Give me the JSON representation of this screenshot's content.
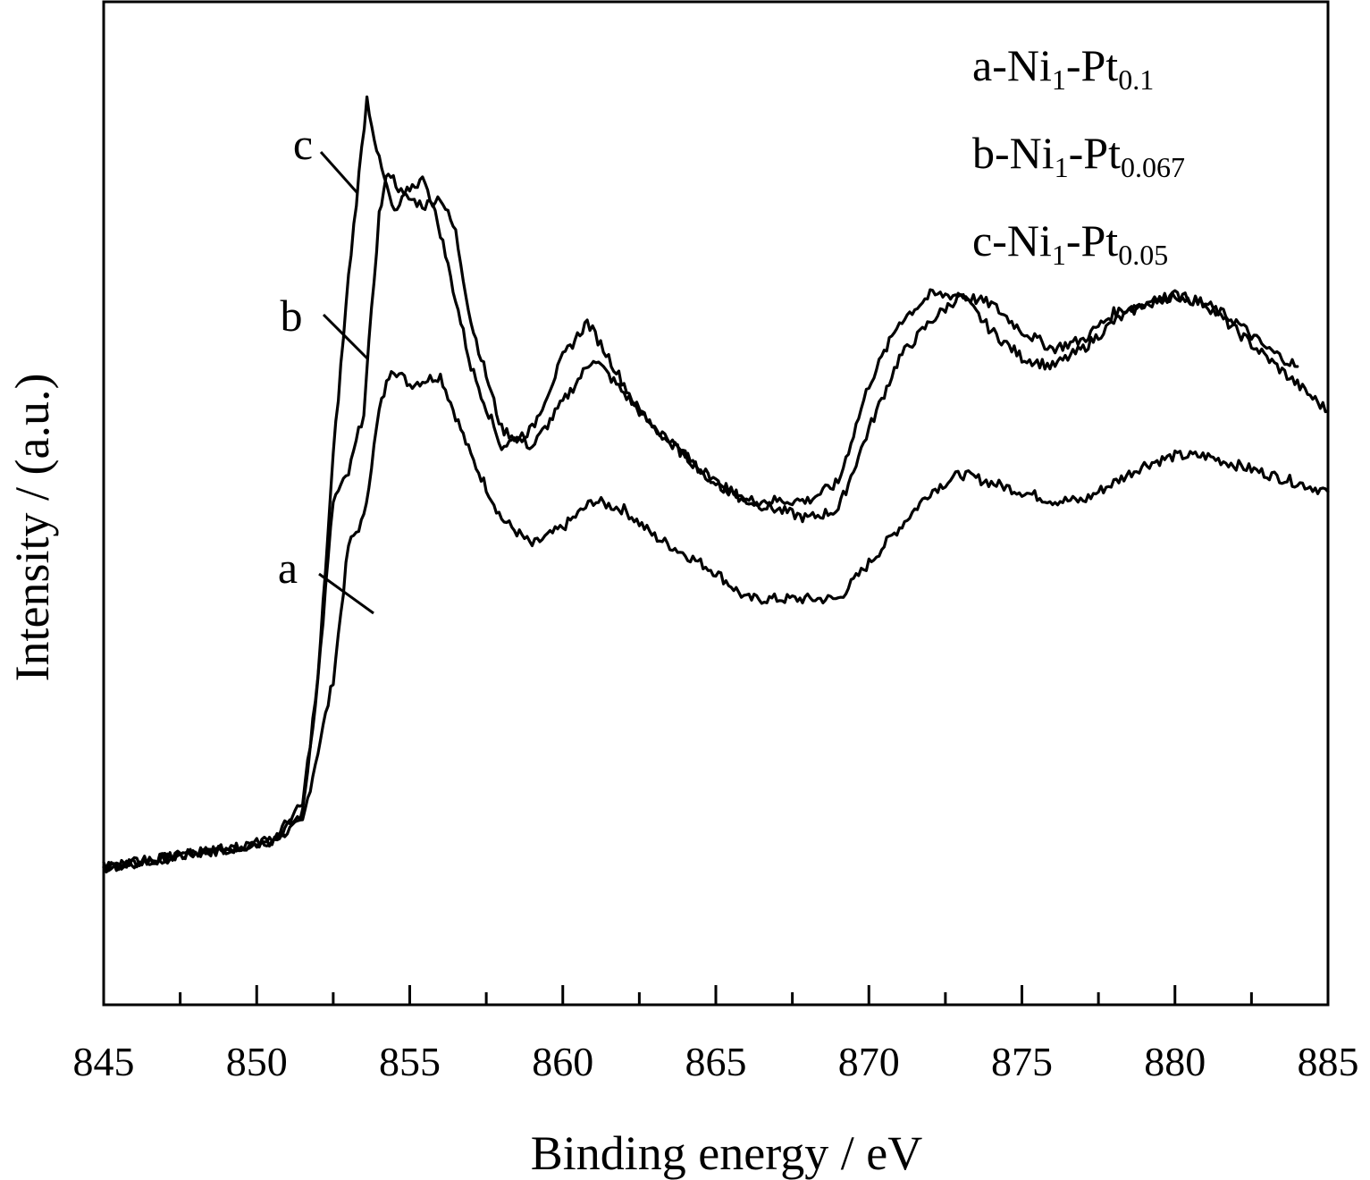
{
  "chart_data": {
    "type": "line",
    "title": "",
    "xlabel": "Binding energy / eV",
    "ylabel": "Intensity / (a.u.)",
    "xlim": [
      845,
      885
    ],
    "ylim": [
      0,
      1
    ],
    "x_ticks": [
      "845",
      "850",
      "855",
      "860",
      "865",
      "870",
      "875",
      "880",
      "885"
    ],
    "grid": false,
    "legend_position": "top-right",
    "legend": [
      {
        "prefix": "a-Ni",
        "sub1": "1",
        "mid": "-Pt",
        "sub2": "0.1"
      },
      {
        "prefix": "b-Ni",
        "sub1": "1",
        "mid": "-Pt",
        "sub2": "0.067"
      },
      {
        "prefix": "c-Ni",
        "sub1": "1",
        "mid": "-Pt",
        "sub2": "0.05"
      }
    ],
    "series": [
      {
        "name": "a",
        "points": [
          [
            845,
            0.09
          ],
          [
            847,
            0.1
          ],
          [
            849,
            0.11
          ],
          [
            850.5,
            0.12
          ],
          [
            851.5,
            0.14
          ],
          [
            852.5,
            0.3
          ],
          [
            853,
            0.45
          ],
          [
            853.5,
            0.48
          ],
          [
            854,
            0.6
          ],
          [
            854.4,
            0.65
          ],
          [
            855,
            0.63
          ],
          [
            856,
            0.64
          ],
          [
            857,
            0.55
          ],
          [
            858,
            0.48
          ],
          [
            859,
            0.45
          ],
          [
            860,
            0.47
          ],
          [
            861,
            0.5
          ],
          [
            862,
            0.49
          ],
          [
            863,
            0.46
          ],
          [
            864,
            0.44
          ],
          [
            865,
            0.42
          ],
          [
            866,
            0.39
          ],
          [
            867,
            0.39
          ],
          [
            868,
            0.39
          ],
          [
            869,
            0.39
          ],
          [
            870,
            0.43
          ],
          [
            871,
            0.47
          ],
          [
            872,
            0.51
          ],
          [
            873,
            0.53
          ],
          [
            874,
            0.52
          ],
          [
            875,
            0.51
          ],
          [
            876,
            0.5
          ],
          [
            877,
            0.5
          ],
          [
            878,
            0.52
          ],
          [
            879,
            0.54
          ],
          [
            880,
            0.55
          ],
          [
            881,
            0.55
          ],
          [
            882,
            0.54
          ],
          [
            883,
            0.53
          ],
          [
            884,
            0.52
          ],
          [
            885,
            0.51
          ]
        ]
      },
      {
        "name": "b",
        "points": [
          [
            845,
            0.09
          ],
          [
            847,
            0.1
          ],
          [
            849,
            0.11
          ],
          [
            850.5,
            0.12
          ],
          [
            851.5,
            0.15
          ],
          [
            852,
            0.3
          ],
          [
            852.5,
            0.5
          ],
          [
            853,
            0.53
          ],
          [
            853.5,
            0.6
          ],
          [
            854,
            0.82
          ],
          [
            854.3,
            0.87
          ],
          [
            854.8,
            0.84
          ],
          [
            855.5,
            0.83
          ],
          [
            856,
            0.84
          ],
          [
            856.5,
            0.8
          ],
          [
            857,
            0.7
          ],
          [
            858,
            0.58
          ],
          [
            859,
            0.56
          ],
          [
            860,
            0.61
          ],
          [
            861,
            0.66
          ],
          [
            862,
            0.62
          ],
          [
            863,
            0.58
          ],
          [
            864,
            0.55
          ],
          [
            865,
            0.52
          ],
          [
            866,
            0.5
          ],
          [
            867,
            0.49
          ],
          [
            868,
            0.48
          ],
          [
            869,
            0.49
          ],
          [
            870,
            0.58
          ],
          [
            871,
            0.66
          ],
          [
            872,
            0.7
          ],
          [
            873,
            0.73
          ],
          [
            874,
            0.69
          ],
          [
            875,
            0.66
          ],
          [
            876,
            0.65
          ],
          [
            877,
            0.67
          ],
          [
            878,
            0.7
          ],
          [
            879,
            0.72
          ],
          [
            880,
            0.73
          ],
          [
            881,
            0.72
          ],
          [
            882,
            0.69
          ],
          [
            883,
            0.66
          ],
          [
            884,
            0.63
          ],
          [
            885,
            0.6
          ]
        ]
      },
      {
        "name": "c",
        "points": [
          [
            845,
            0.09
          ],
          [
            847,
            0.1
          ],
          [
            849,
            0.11
          ],
          [
            850.5,
            0.12
          ],
          [
            851.5,
            0.16
          ],
          [
            852,
            0.3
          ],
          [
            852.5,
            0.55
          ],
          [
            853,
            0.75
          ],
          [
            853.6,
            0.95
          ],
          [
            854,
            0.88
          ],
          [
            854.5,
            0.82
          ],
          [
            855,
            0.85
          ],
          [
            855.5,
            0.86
          ],
          [
            856,
            0.8
          ],
          [
            857,
            0.65
          ],
          [
            858,
            0.56
          ],
          [
            859,
            0.58
          ],
          [
            860,
            0.66
          ],
          [
            860.8,
            0.7
          ],
          [
            861.5,
            0.66
          ],
          [
            862.5,
            0.6
          ],
          [
            864,
            0.55
          ],
          [
            865,
            0.52
          ],
          [
            866,
            0.5
          ],
          [
            867,
            0.5
          ],
          [
            868,
            0.5
          ],
          [
            869,
            0.52
          ],
          [
            870,
            0.63
          ],
          [
            871,
            0.7
          ],
          [
            872,
            0.73
          ],
          [
            873,
            0.73
          ],
          [
            874,
            0.72
          ],
          [
            875,
            0.69
          ],
          [
            876,
            0.67
          ],
          [
            877,
            0.68
          ],
          [
            878,
            0.71
          ],
          [
            879,
            0.72
          ],
          [
            880,
            0.73
          ],
          [
            881,
            0.72
          ],
          [
            882,
            0.7
          ],
          [
            883,
            0.67
          ],
          [
            884,
            0.65
          ]
        ]
      }
    ],
    "curve_labels": [
      "a",
      "b",
      "c"
    ]
  }
}
